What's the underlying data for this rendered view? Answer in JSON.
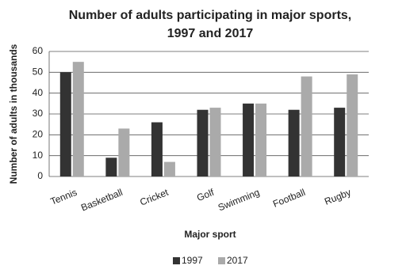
{
  "chart_data": {
    "type": "bar",
    "title": [
      "Number of adults participating in major sports,",
      "1997 and 2017"
    ],
    "x_label": "Major sport",
    "y_label": "Number of adults in thousands",
    "categories": [
      "Tennis",
      "Basketball",
      "Cricket",
      "Golf",
      "Swimming",
      "Football",
      "Rugby"
    ],
    "series": [
      {
        "name": "1997",
        "color": "#333333",
        "values": [
          50,
          9,
          26,
          32,
          35,
          32,
          33
        ]
      },
      {
        "name": "2017",
        "color": "#aaaaaa",
        "values": [
          55,
          23,
          7,
          33,
          35,
          48,
          49
        ]
      }
    ],
    "ylim": [
      0,
      60
    ],
    "yticks": [
      0,
      10,
      20,
      30,
      40,
      50,
      60
    ],
    "grid": true
  }
}
